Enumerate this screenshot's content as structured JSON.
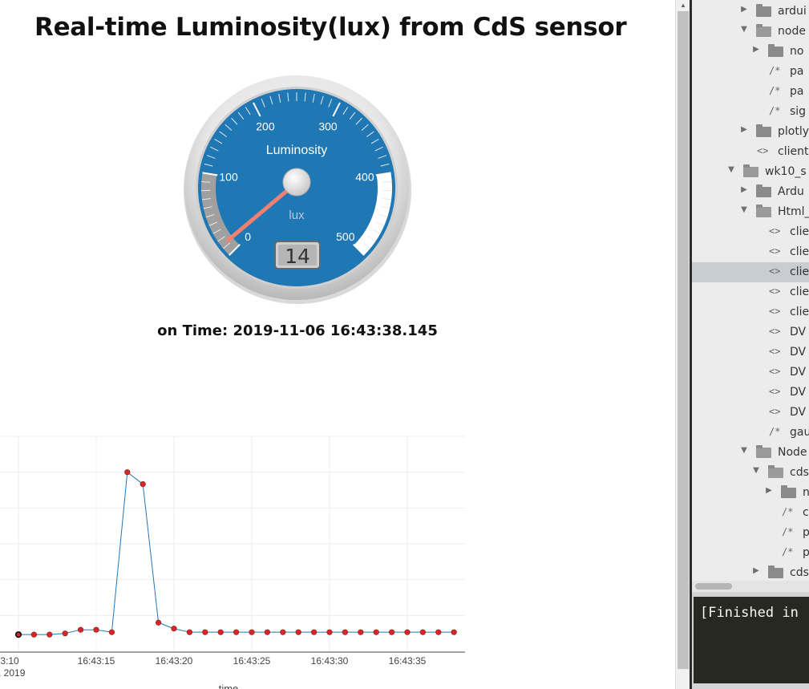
{
  "page": {
    "title": "Real-time Luminosity(lux) from CdS sensor",
    "time_prefix": "on Time:",
    "time_value": "2019-11-06 16:43:38.145"
  },
  "gauge": {
    "title": "Luminosity",
    "units": "lux",
    "min": 0,
    "max": 500,
    "value": 14,
    "value_text": "14",
    "tick_labels": [
      "0",
      "100",
      "200",
      "300",
      "400",
      "500"
    ],
    "colors": {
      "face": "#1f77b4",
      "needle": "#f08070",
      "highlight_low": "#a0a0a0",
      "highlight_high": "#ffffff"
    }
  },
  "chart_data": {
    "type": "line",
    "xlabel": "time",
    "x_start_label_fragment": ":3:10",
    "x_date_fragment": ", 2019",
    "tick_labels": [
      "16:43:15",
      "16:43:20",
      "16:43:25",
      "16:43:30",
      "16:43:35"
    ],
    "x_seconds": [
      10,
      11,
      12,
      13,
      14,
      15,
      16,
      17,
      18,
      19,
      20,
      21,
      22,
      23,
      24,
      25,
      26,
      27,
      28,
      29,
      30,
      31,
      32,
      33,
      34,
      35,
      36,
      37,
      38
    ],
    "values": [
      14,
      14,
      14,
      15,
      18,
      18,
      16,
      150,
      140,
      24,
      19,
      16,
      16,
      16,
      16,
      16,
      16,
      16,
      16,
      16,
      16,
      16,
      16,
      16,
      16,
      16,
      16,
      16,
      16
    ],
    "ylim": [
      0,
      180
    ],
    "colors": {
      "line": "#1f77b4",
      "marker": "#d62728",
      "grid": "#eeeeee",
      "axis": "#444444"
    }
  },
  "sidebar": {
    "items": [
      {
        "label": "ardui",
        "type": "folder",
        "expanded": false,
        "level": 3
      },
      {
        "label": "node",
        "type": "folder",
        "expanded": true,
        "level": 3
      },
      {
        "label": "no",
        "type": "folder",
        "expanded": false,
        "level": 4
      },
      {
        "label": "pa",
        "type": "js",
        "level": 4
      },
      {
        "label": "pa",
        "type": "js",
        "level": 4
      },
      {
        "label": "sig",
        "type": "js",
        "level": 4
      },
      {
        "label": "plotly",
        "type": "folder",
        "expanded": false,
        "level": 3
      },
      {
        "label": "client",
        "type": "html",
        "level": 3
      },
      {
        "label": "wk10_s",
        "type": "folder",
        "expanded": true,
        "level": 2
      },
      {
        "label": "Ardu",
        "type": "folder",
        "expanded": false,
        "level": 3
      },
      {
        "label": "Html_",
        "type": "folder",
        "expanded": true,
        "level": 3
      },
      {
        "label": "clie",
        "type": "html",
        "level": 4
      },
      {
        "label": "clie",
        "type": "html",
        "level": 4
      },
      {
        "label": "clie",
        "type": "html",
        "level": 4,
        "selected": true
      },
      {
        "label": "clie",
        "type": "html",
        "level": 4
      },
      {
        "label": "clie",
        "type": "html",
        "level": 4
      },
      {
        "label": "DV",
        "type": "html",
        "level": 4
      },
      {
        "label": "DV",
        "type": "html",
        "level": 4
      },
      {
        "label": "DV",
        "type": "html",
        "level": 4
      },
      {
        "label": "DV",
        "type": "html",
        "level": 4
      },
      {
        "label": "DV",
        "type": "html",
        "level": 4
      },
      {
        "label": "gau",
        "type": "js",
        "level": 4
      },
      {
        "label": "Node",
        "type": "folder",
        "expanded": true,
        "level": 3
      },
      {
        "label": "cds",
        "type": "folder",
        "expanded": true,
        "level": 4
      },
      {
        "label": "n",
        "type": "folder",
        "expanded": false,
        "level": 5
      },
      {
        "label": "c",
        "type": "js",
        "level": 5
      },
      {
        "label": "p",
        "type": "js",
        "level": 5
      },
      {
        "label": "p",
        "type": "js",
        "level": 5
      },
      {
        "label": "cds",
        "type": "folder",
        "expanded": false,
        "level": 4
      }
    ]
  },
  "console": {
    "text": "[Finished in"
  }
}
